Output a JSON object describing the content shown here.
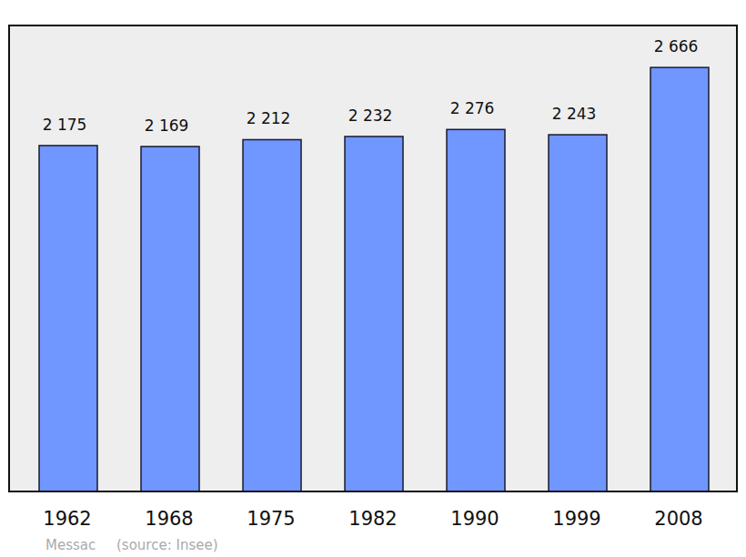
{
  "chart_data": {
    "type": "bar",
    "title": "Messac",
    "subtitle": "(source: Insee)",
    "categories": [
      "1962",
      "1968",
      "1975",
      "1982",
      "1990",
      "1999",
      "2008"
    ],
    "values": [
      2175,
      2169,
      2212,
      2232,
      2276,
      2243,
      2666
    ],
    "value_labels": [
      "2 175",
      "2 169",
      "2 212",
      "2 232",
      "2 276",
      "2 243",
      "2 666"
    ],
    "color": "#7096ff",
    "ylim": [
      0,
      2930
    ],
    "data_labels": true,
    "tick_labels": "x",
    "grid": false
  }
}
